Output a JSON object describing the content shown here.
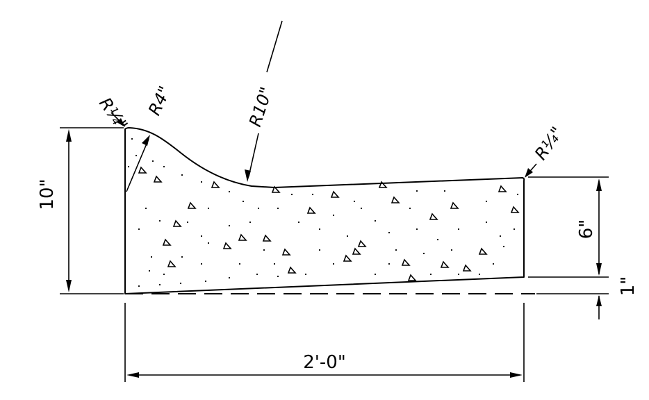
{
  "diagram": {
    "dimensions": {
      "height_total": "10\"",
      "height_right": "6\"",
      "offset": "1\"",
      "width": "2'-0\""
    },
    "radii": {
      "top_left_corner": "R¼\"",
      "curb_top": "R4\"",
      "curb_fillet": "R10\"",
      "top_right_corner": "R¼\""
    }
  }
}
